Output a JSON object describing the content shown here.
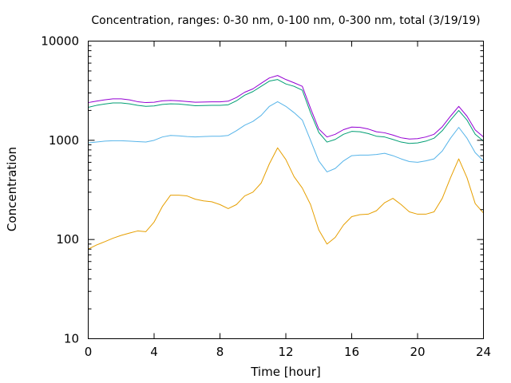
{
  "chart_data": {
    "type": "line",
    "title": "Concentration, ranges: 0-30 nm, 0-100 nm, 0-300 nm, total (3/19/19)",
    "xlabel": "Time [hour]",
    "ylabel": "Concentration",
    "xlim": [
      0,
      24
    ],
    "ylim": [
      10,
      10000
    ],
    "yscale": "log",
    "grid": false,
    "legend": "none",
    "x_ticks": [
      {
        "value": 0,
        "label": "0"
      },
      {
        "value": 4,
        "label": "4"
      },
      {
        "value": 8,
        "label": "8"
      },
      {
        "value": 12,
        "label": "12"
      },
      {
        "value": 16,
        "label": "16"
      },
      {
        "value": 20,
        "label": "20"
      },
      {
        "value": 24,
        "label": "24"
      }
    ],
    "y_ticks": [
      {
        "value": 10,
        "label": "10"
      },
      {
        "value": 100,
        "label": "100"
      },
      {
        "value": 1000,
        "label": "1000"
      },
      {
        "value": 10000,
        "label": "10000"
      }
    ],
    "series": [
      {
        "color": "#e69f00",
        "x": [
          0,
          0.5,
          1,
          1.5,
          2,
          2.5,
          3,
          3.5,
          4,
          4.5,
          5,
          5.5,
          6,
          6.5,
          7,
          7.5,
          8,
          8.5,
          9,
          9.5,
          10,
          10.5,
          11,
          11.5,
          12,
          12.5,
          13,
          13.5,
          14,
          14.5,
          15,
          15.5,
          16,
          16.5,
          17,
          17.5,
          18,
          18.5,
          19,
          19.5,
          20,
          20.5,
          21,
          21.5,
          22,
          22.5,
          23,
          23.5,
          24
        ],
        "y": [
          80,
          88,
          95,
          103,
          110,
          116,
          122,
          120,
          150,
          215,
          280,
          280,
          275,
          255,
          245,
          240,
          225,
          205,
          225,
          275,
          300,
          370,
          580,
          840,
          640,
          430,
          330,
          225,
          125,
          90,
          105,
          140,
          170,
          178,
          180,
          195,
          235,
          260,
          225,
          190,
          180,
          180,
          190,
          260,
          420,
          650,
          420,
          230,
          185
        ]
      },
      {
        "color": "#56b4e9",
        "x": [
          0,
          0.5,
          1,
          1.5,
          2,
          2.5,
          3,
          3.5,
          4,
          4.5,
          5,
          5.5,
          6,
          6.5,
          7,
          7.5,
          8,
          8.5,
          9,
          9.5,
          10,
          10.5,
          11,
          11.5,
          12,
          12.5,
          13,
          13.5,
          14,
          14.5,
          15,
          15.5,
          16,
          16.5,
          17,
          17.5,
          18,
          18.5,
          19,
          19.5,
          20,
          20.5,
          21,
          21.5,
          22,
          22.5,
          23,
          23.5,
          24
        ],
        "y": [
          940,
          960,
          980,
          990,
          990,
          980,
          970,
          960,
          1000,
          1080,
          1120,
          1110,
          1090,
          1080,
          1090,
          1100,
          1100,
          1120,
          1250,
          1420,
          1550,
          1780,
          2200,
          2450,
          2200,
          1900,
          1600,
          1000,
          620,
          480,
          520,
          620,
          700,
          710,
          710,
          720,
          740,
          700,
          650,
          610,
          600,
          620,
          650,
          780,
          1050,
          1350,
          1050,
          750,
          620
        ]
      },
      {
        "color": "#009e73",
        "x": [
          0,
          0.5,
          1,
          1.5,
          2,
          2.5,
          3,
          3.5,
          4,
          4.5,
          5,
          5.5,
          6,
          6.5,
          7,
          7.5,
          8,
          8.5,
          9,
          9.5,
          10,
          10.5,
          11,
          11.5,
          12,
          12.5,
          13,
          13.5,
          14,
          14.5,
          15,
          15.5,
          16,
          16.5,
          17,
          17.5,
          18,
          18.5,
          19,
          19.5,
          20,
          20.5,
          21,
          21.5,
          22,
          22.5,
          23,
          23.5,
          24
        ],
        "y": [
          2150,
          2250,
          2320,
          2380,
          2380,
          2330,
          2250,
          2200,
          2220,
          2300,
          2330,
          2320,
          2280,
          2230,
          2240,
          2250,
          2250,
          2280,
          2500,
          2850,
          3100,
          3500,
          3950,
          4100,
          3700,
          3500,
          3200,
          1900,
          1200,
          960,
          1020,
          1150,
          1230,
          1220,
          1170,
          1100,
          1080,
          1020,
          960,
          930,
          940,
          980,
          1050,
          1250,
          1600,
          2000,
          1600,
          1150,
          980
        ]
      },
      {
        "color": "#9400d3",
        "x": [
          0,
          0.5,
          1,
          1.5,
          2,
          2.5,
          3,
          3.5,
          4,
          4.5,
          5,
          5.5,
          6,
          6.5,
          7,
          7.5,
          8,
          8.5,
          9,
          9.5,
          10,
          10.5,
          11,
          11.5,
          12,
          12.5,
          13,
          13.5,
          14,
          14.5,
          15,
          15.5,
          16,
          16.5,
          17,
          17.5,
          18,
          18.5,
          19,
          19.5,
          20,
          20.5,
          21,
          21.5,
          22,
          22.5,
          23,
          23.5,
          24
        ],
        "y": [
          2400,
          2480,
          2560,
          2620,
          2620,
          2560,
          2450,
          2400,
          2420,
          2500,
          2520,
          2500,
          2460,
          2420,
          2430,
          2440,
          2440,
          2480,
          2700,
          3050,
          3300,
          3750,
          4250,
          4500,
          4100,
          3800,
          3500,
          2100,
          1300,
          1080,
          1150,
          1280,
          1360,
          1350,
          1300,
          1220,
          1190,
          1130,
          1060,
          1030,
          1040,
          1080,
          1150,
          1370,
          1750,
          2200,
          1750,
          1270,
          1080
        ]
      }
    ]
  }
}
